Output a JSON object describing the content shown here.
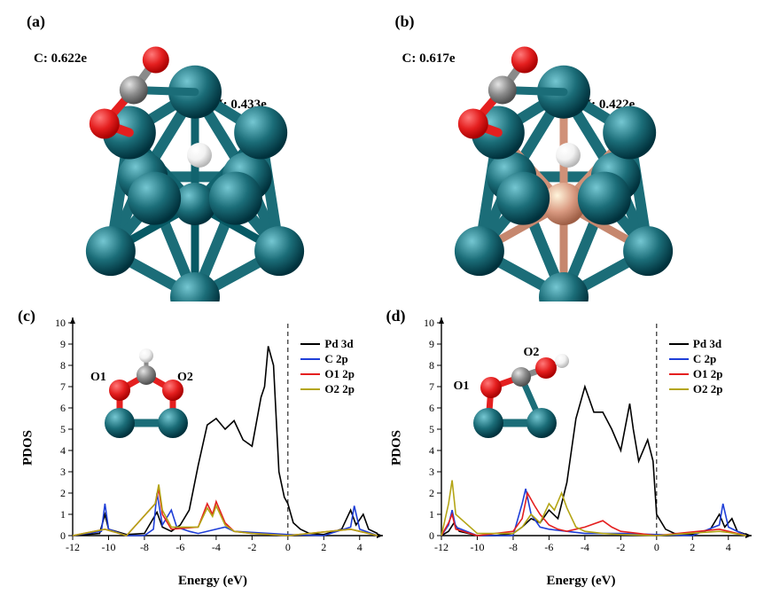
{
  "panels": {
    "a": {
      "label": "(a)",
      "c_label": "C: 0.622e",
      "h_label": "H: 0.433e"
    },
    "b": {
      "label": "(b)",
      "c_label": "C: 0.617e",
      "h_label": "H: 0.422e"
    },
    "c": {
      "label": "(c)"
    },
    "d": {
      "label": "(d)"
    }
  },
  "colors": {
    "pd": "#1b6d78",
    "pd_dark": "#0f444c",
    "cu": "#da9b82",
    "o": "#e41f1f",
    "c": "#8a8a8a",
    "h": "#f2f2f2",
    "h_stroke": "#bfbfbf",
    "bg": "#ffffff",
    "axis": "#000000"
  },
  "pdos_common": {
    "xlabel": "Energy (eV)",
    "ylabel": "PDOS",
    "ylim": [
      0,
      10
    ],
    "ytick_step": 1,
    "legend_series": [
      {
        "name": "Pd 3d",
        "color": "#000000"
      },
      {
        "name": "C 2p",
        "color": "#1f3fd8"
      },
      {
        "name": "O1 2p",
        "color": "#e41f1f"
      },
      {
        "name": "O2 2p",
        "color": "#b4a516"
      }
    ],
    "fermi_line_x": 0,
    "axis_fontsize": 12,
    "label_fontsize": 15,
    "line_width": 1.6
  },
  "pdos_c": {
    "xlim": [
      -12,
      5
    ],
    "xtick_step": 2,
    "inset": {
      "o1": "O1",
      "o2": "O2"
    },
    "series": {
      "Pd 3d": [
        [
          -12,
          0
        ],
        [
          -10.5,
          0.1
        ],
        [
          -10.2,
          1.0
        ],
        [
          -10,
          0.3
        ],
        [
          -9,
          0.05
        ],
        [
          -8,
          0.1
        ],
        [
          -7.3,
          1.1
        ],
        [
          -7,
          0.4
        ],
        [
          -6.5,
          0.2
        ],
        [
          -6,
          0.5
        ],
        [
          -5.5,
          1.2
        ],
        [
          -5,
          3.3
        ],
        [
          -4.5,
          5.2
        ],
        [
          -4,
          5.5
        ],
        [
          -3.5,
          5.0
        ],
        [
          -3,
          5.4
        ],
        [
          -2.5,
          4.5
        ],
        [
          -2,
          4.2
        ],
        [
          -1.5,
          6.5
        ],
        [
          -1.3,
          7.0
        ],
        [
          -1.1,
          8.9
        ],
        [
          -0.8,
          8.0
        ],
        [
          -0.5,
          3.0
        ],
        [
          -0.2,
          1.8
        ],
        [
          0,
          1.5
        ],
        [
          0.3,
          0.6
        ],
        [
          0.7,
          0.3
        ],
        [
          1.2,
          0.1
        ],
        [
          2,
          0.05
        ],
        [
          3,
          0.3
        ],
        [
          3.5,
          1.2
        ],
        [
          3.8,
          0.5
        ],
        [
          4.2,
          1.0
        ],
        [
          4.5,
          0.3
        ],
        [
          5,
          0.1
        ]
      ],
      "C 2p": [
        [
          -12,
          0
        ],
        [
          -10.4,
          0.2
        ],
        [
          -10.2,
          1.5
        ],
        [
          -10,
          0.3
        ],
        [
          -9,
          0
        ],
        [
          -8,
          0
        ],
        [
          -7.5,
          0.3
        ],
        [
          -7.3,
          2.0
        ],
        [
          -7,
          0.5
        ],
        [
          -6.5,
          1.2
        ],
        [
          -6.2,
          0.4
        ],
        [
          -5.5,
          0.2
        ],
        [
          -5,
          0.1
        ],
        [
          -3.5,
          0.4
        ],
        [
          -3,
          0.2
        ],
        [
          -1,
          0.1
        ],
        [
          0,
          0.05
        ],
        [
          2,
          0
        ],
        [
          3.5,
          0.4
        ],
        [
          3.7,
          1.4
        ],
        [
          4,
          0.3
        ],
        [
          5,
          0
        ]
      ],
      "O1 2p": [
        [
          -12,
          0
        ],
        [
          -10.2,
          0.3
        ],
        [
          -9,
          0
        ],
        [
          -7.4,
          1.5
        ],
        [
          -7.2,
          2.2
        ],
        [
          -7,
          1.0
        ],
        [
          -6.5,
          0.3
        ],
        [
          -5,
          0.4
        ],
        [
          -4.5,
          1.5
        ],
        [
          -4.2,
          1.0
        ],
        [
          -4,
          1.6
        ],
        [
          -3.5,
          0.6
        ],
        [
          -3,
          0.2
        ],
        [
          -2,
          0.1
        ],
        [
          0,
          0
        ],
        [
          3.5,
          0.3
        ],
        [
          4,
          0.2
        ],
        [
          5,
          0
        ]
      ],
      "O2 2p": [
        [
          -12,
          0
        ],
        [
          -10.2,
          0.3
        ],
        [
          -9,
          0
        ],
        [
          -7.4,
          1.5
        ],
        [
          -7.2,
          2.4
        ],
        [
          -7,
          1.2
        ],
        [
          -6.5,
          0.4
        ],
        [
          -5,
          0.4
        ],
        [
          -4.5,
          1.3
        ],
        [
          -4.2,
          0.9
        ],
        [
          -4,
          1.4
        ],
        [
          -3.5,
          0.5
        ],
        [
          -3,
          0.2
        ],
        [
          -2,
          0.1
        ],
        [
          0,
          0
        ],
        [
          3.5,
          0.3
        ],
        [
          4,
          0.2
        ],
        [
          5,
          0
        ]
      ]
    }
  },
  "pdos_d": {
    "xlim": [
      -12,
      5
    ],
    "xtick_step": 2,
    "inset": {
      "o1": "O1",
      "o2": "O2"
    },
    "series": {
      "Pd 3d": [
        [
          -12,
          0
        ],
        [
          -11.6,
          0.2
        ],
        [
          -11.3,
          0.6
        ],
        [
          -11,
          0.2
        ],
        [
          -10,
          0
        ],
        [
          -9,
          0
        ],
        [
          -8,
          0.1
        ],
        [
          -7.5,
          0.4
        ],
        [
          -7,
          0.8
        ],
        [
          -6.5,
          0.6
        ],
        [
          -6,
          1.2
        ],
        [
          -5.5,
          0.8
        ],
        [
          -5,
          2.5
        ],
        [
          -4.5,
          5.5
        ],
        [
          -4,
          7.0
        ],
        [
          -3.5,
          5.8
        ],
        [
          -3,
          5.8
        ],
        [
          -2.5,
          5.0
        ],
        [
          -2,
          4.0
        ],
        [
          -1.5,
          6.2
        ],
        [
          -1.3,
          5.0
        ],
        [
          -1,
          3.5
        ],
        [
          -0.5,
          4.5
        ],
        [
          -0.2,
          3.5
        ],
        [
          0,
          1.0
        ],
        [
          0.5,
          0.3
        ],
        [
          1,
          0.1
        ],
        [
          2,
          0.05
        ],
        [
          3,
          0.3
        ],
        [
          3.5,
          1.0
        ],
        [
          3.8,
          0.4
        ],
        [
          4.2,
          0.8
        ],
        [
          4.5,
          0.2
        ],
        [
          5,
          0.05
        ]
      ],
      "C 2p": [
        [
          -12,
          0
        ],
        [
          -11.6,
          0.5
        ],
        [
          -11.4,
          1.2
        ],
        [
          -11.2,
          0.4
        ],
        [
          -10,
          0
        ],
        [
          -8,
          0
        ],
        [
          -7.5,
          1.5
        ],
        [
          -7.3,
          2.2
        ],
        [
          -7,
          1.0
        ],
        [
          -6.5,
          0.4
        ],
        [
          -6,
          0.3
        ],
        [
          -5,
          0.2
        ],
        [
          -4,
          0.1
        ],
        [
          -2,
          0.1
        ],
        [
          0,
          0.05
        ],
        [
          2,
          0
        ],
        [
          3.5,
          0.5
        ],
        [
          3.7,
          1.5
        ],
        [
          4,
          0.4
        ],
        [
          5,
          0
        ]
      ],
      "O1 2p": [
        [
          -12,
          0
        ],
        [
          -11.6,
          0.6
        ],
        [
          -11.4,
          1.0
        ],
        [
          -11.2,
          0.3
        ],
        [
          -10,
          0
        ],
        [
          -8,
          0.2
        ],
        [
          -7.5,
          0.8
        ],
        [
          -7.2,
          2.0
        ],
        [
          -6.8,
          1.4
        ],
        [
          -6.5,
          1.0
        ],
        [
          -6,
          0.5
        ],
        [
          -5.5,
          0.3
        ],
        [
          -5,
          0.2
        ],
        [
          -4,
          0.4
        ],
        [
          -3,
          0.7
        ],
        [
          -2.5,
          0.4
        ],
        [
          -2,
          0.2
        ],
        [
          -1,
          0.1
        ],
        [
          0,
          0
        ],
        [
          3.5,
          0.3
        ],
        [
          4,
          0.2
        ],
        [
          5,
          0
        ]
      ],
      "O2 2p": [
        [
          -12,
          0
        ],
        [
          -11.6,
          1.5
        ],
        [
          -11.4,
          2.6
        ],
        [
          -11.2,
          1.0
        ],
        [
          -10,
          0.1
        ],
        [
          -8,
          0.1
        ],
        [
          -7.5,
          0.4
        ],
        [
          -7,
          1.0
        ],
        [
          -6.5,
          0.6
        ],
        [
          -6,
          1.5
        ],
        [
          -5.7,
          1.2
        ],
        [
          -5.3,
          2.0
        ],
        [
          -5,
          1.3
        ],
        [
          -4.5,
          0.4
        ],
        [
          -4,
          0.2
        ],
        [
          -3,
          0.1
        ],
        [
          -2,
          0.05
        ],
        [
          0,
          0
        ],
        [
          3.5,
          0.2
        ],
        [
          4,
          0.15
        ],
        [
          5,
          0
        ]
      ]
    }
  }
}
